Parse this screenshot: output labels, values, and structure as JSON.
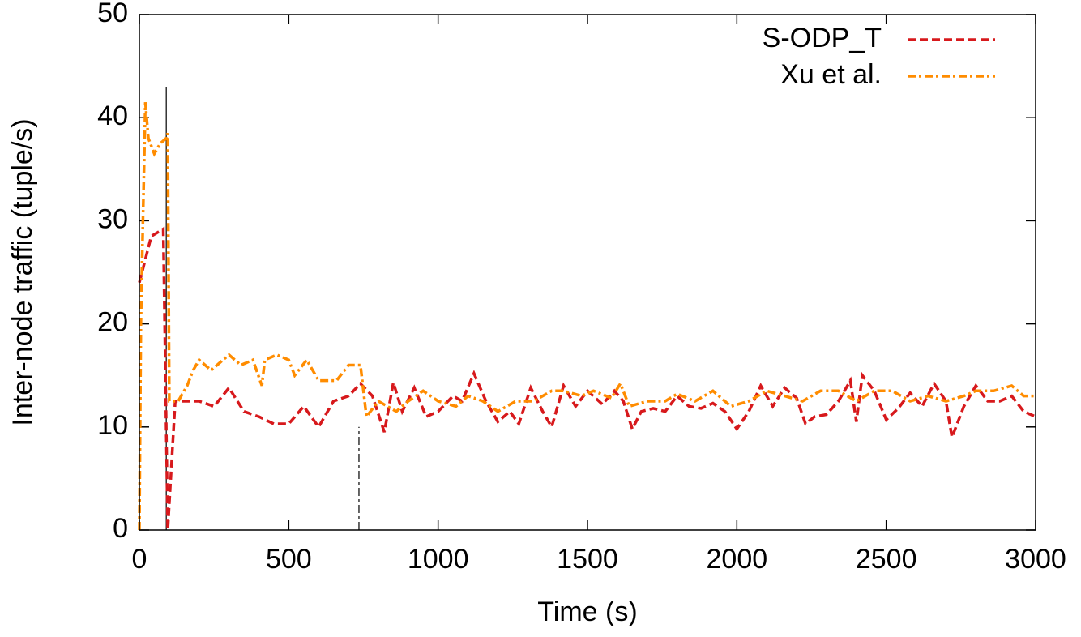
{
  "chart_data": {
    "type": "line",
    "x_label": "Time (s)",
    "y_label": "Inter-node traffic (tuple/s)",
    "xlim": [
      0,
      3000
    ],
    "xticks": [
      0,
      500,
      1000,
      1500,
      2000,
      2500,
      3000
    ],
    "ylim": [
      0,
      50
    ],
    "yticks": [
      0,
      10,
      20,
      30,
      40,
      50
    ],
    "grid": false,
    "legend": "top-right",
    "series": [
      {
        "name": "S-ODP_T",
        "color": "#d7191c",
        "dash": "dashed",
        "x": [
          0,
          40,
          80,
          95,
          120,
          150,
          200,
          250,
          300,
          350,
          400,
          450,
          500,
          550,
          600,
          650,
          700,
          740,
          780,
          820,
          850,
          880,
          920,
          960,
          1000,
          1050,
          1080,
          1120,
          1160,
          1200,
          1240,
          1270,
          1310,
          1350,
          1380,
          1420,
          1460,
          1500,
          1550,
          1590,
          1620,
          1650,
          1680,
          1720,
          1760,
          1800,
          1840,
          1880,
          1920,
          1960,
          2000,
          2040,
          2080,
          2120,
          2160,
          2200,
          2230,
          2260,
          2300,
          2340,
          2380,
          2400,
          2420,
          2460,
          2500,
          2540,
          2580,
          2620,
          2660,
          2700,
          2720,
          2760,
          2800,
          2840,
          2880,
          2920,
          2960,
          3000
        ],
        "values": [
          24,
          28.5,
          29.2,
          0,
          12.5,
          12.5,
          12.5,
          12,
          13.8,
          11.5,
          11,
          10.3,
          10.3,
          12,
          10,
          12.5,
          13,
          14.2,
          13,
          9.5,
          14.3,
          11.5,
          13.8,
          11,
          11.5,
          13,
          12.5,
          15.2,
          12.5,
          10.5,
          11.5,
          10.3,
          13.8,
          11.5,
          10,
          14,
          12,
          13.5,
          12.2,
          13.5,
          12.5,
          9.8,
          11.5,
          11.8,
          11.5,
          13,
          12,
          11.8,
          12.3,
          11.5,
          9.8,
          11.5,
          14,
          12,
          13.8,
          12.8,
          10.3,
          11,
          11.2,
          12.5,
          14.5,
          10.5,
          15,
          13.5,
          10.7,
          11.8,
          13.3,
          12,
          14.2,
          12.5,
          9,
          12,
          14,
          12.5,
          12.5,
          13,
          11.5,
          11
        ]
      },
      {
        "name": "Xu et al.",
        "color": "#ff8c00",
        "dash": "dash-dot",
        "x": [
          0,
          5,
          20,
          30,
          50,
          70,
          90,
          95,
          100,
          130,
          160,
          180,
          200,
          240,
          280,
          300,
          340,
          380,
          410,
          420,
          460,
          500,
          520,
          560,
          600,
          660,
          700,
          740,
          760,
          800,
          860,
          900,
          950,
          1000,
          1060,
          1100,
          1150,
          1200,
          1260,
          1320,
          1380,
          1420,
          1480,
          1520,
          1580,
          1610,
          1640,
          1700,
          1760,
          1800,
          1860,
          1920,
          1980,
          2040,
          2100,
          2160,
          2220,
          2280,
          2340,
          2400,
          2460,
          2520,
          2580,
          2640,
          2700,
          2760,
          2800,
          2860,
          2920,
          2960,
          3000
        ],
        "values": [
          0,
          20,
          41.5,
          38,
          36.5,
          37.5,
          38,
          38.5,
          12.5,
          12.5,
          14,
          15.5,
          16.5,
          15.5,
          16.5,
          17,
          16,
          16.5,
          14,
          16.5,
          17,
          16.5,
          15,
          16.5,
          14.5,
          14.5,
          16,
          16,
          11,
          12.5,
          11.5,
          12.5,
          13.5,
          12.5,
          12,
          13,
          12.5,
          11.5,
          12.5,
          12.5,
          13.5,
          13.5,
          13,
          13.5,
          12.8,
          14.2,
          12,
          12.5,
          12.5,
          13.2,
          12.5,
          13.5,
          12,
          12.5,
          13.5,
          13,
          12.5,
          13.5,
          13.5,
          12.5,
          13.5,
          13.5,
          12.5,
          13,
          12.5,
          13,
          13.5,
          13.5,
          14,
          13,
          13
        ]
      }
    ],
    "reference_lines": [
      {
        "x": 90,
        "y": 43,
        "dash": "solid"
      },
      {
        "x": 735,
        "y": 10,
        "dash": "dash-dot"
      }
    ]
  }
}
